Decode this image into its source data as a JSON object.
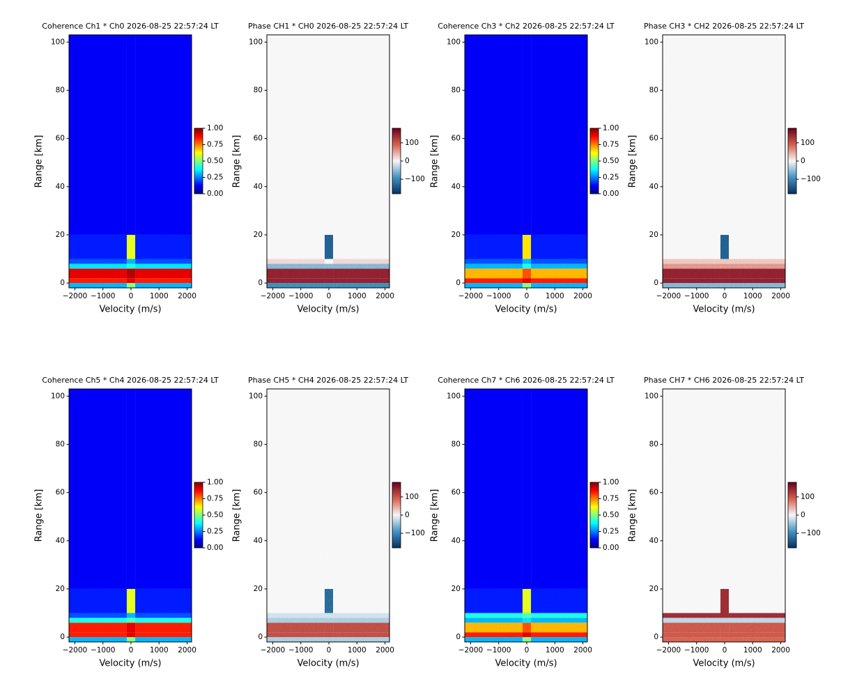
{
  "chart_data": [
    {
      "type": "heatmap",
      "title": "Coherence Ch1 * Ch0 2026-08-25 22:57:24 LT",
      "xlabel": "Velocity (m/s)",
      "ylabel": "Range [km]",
      "xlim": [
        -2210,
        2160
      ],
      "xticks": [
        {
          "value": -2000,
          "label": "−2000"
        },
        {
          "value": -1000,
          "label": "−1000"
        },
        0,
        1000,
        2000
      ],
      "ylim": [
        -2,
        103
      ],
      "yticks": [
        0,
        20,
        40,
        60,
        80,
        100
      ],
      "x_edges": [
        -2210,
        -150,
        150,
        2160
      ],
      "y_edges": [
        -2,
        0,
        2,
        6,
        8,
        10,
        20,
        103
      ],
      "z": [
        [
          0.3,
          0.5,
          0.3
        ],
        [
          0.85,
          0.9,
          0.85
        ],
        [
          0.9,
          0.95,
          0.9
        ],
        [
          0.35,
          0.4,
          0.35
        ],
        [
          0.2,
          0.3,
          0.2
        ],
        [
          0.15,
          0.6,
          0.15
        ],
        [
          0.12,
          0.12,
          0.12
        ]
      ],
      "colormap": "jet",
      "clim": [
        0,
        1
      ],
      "cticks": [
        {
          "value": 0,
          "label": "0.00"
        },
        0.25,
        {
          "value": 0.5,
          "label": "0.50"
        },
        0.75,
        {
          "value": 1,
          "label": "1.00"
        }
      ]
    },
    {
      "type": "heatmap",
      "title": "Phase CH1 * CH0 2026-08-25 22:57:24 LT",
      "xlabel": "Velocity (m/s)",
      "ylabel": "Range [km]",
      "xlim": [
        -2210,
        2160
      ],
      "xticks": [
        {
          "value": -2000,
          "label": "−2000"
        },
        {
          "value": -1000,
          "label": "−1000"
        },
        0,
        1000,
        2000
      ],
      "ylim": [
        -2,
        103
      ],
      "yticks": [
        0,
        20,
        40,
        60,
        80,
        100
      ],
      "x_edges": [
        -2210,
        -150,
        150,
        2160
      ],
      "y_edges": [
        -2,
        0,
        2,
        6,
        8,
        10,
        20,
        103
      ],
      "z": [
        [
          -100,
          -100,
          -100
        ],
        [
          150,
          150,
          150
        ],
        [
          150,
          150,
          150
        ],
        [
          -60,
          -60,
          -60
        ],
        [
          20,
          0,
          20
        ],
        [
          0,
          -140,
          0
        ],
        [
          0,
          0,
          0
        ]
      ],
      "colormap": "RdBu_r",
      "clim": [
        -180,
        180
      ],
      "cticks": [
        {
          "value": -100,
          "label": "−100"
        },
        0,
        100
      ]
    },
    {
      "type": "heatmap",
      "title": "Coherence Ch3 * Ch2 2026-08-25 22:57:24 LT",
      "xlabel": "Velocity (m/s)",
      "ylabel": "Range [km]",
      "xlim": [
        -2210,
        2160
      ],
      "xticks": [
        {
          "value": -2000,
          "label": "−2000"
        },
        {
          "value": -1000,
          "label": "−1000"
        },
        0,
        1000,
        2000
      ],
      "ylim": [
        -2,
        103
      ],
      "yticks": [
        0,
        20,
        40,
        60,
        80,
        100
      ],
      "x_edges": [
        -2210,
        -150,
        150,
        2160
      ],
      "y_edges": [
        -2,
        0,
        2,
        6,
        8,
        10,
        20,
        103
      ],
      "z": [
        [
          0.3,
          0.5,
          0.3
        ],
        [
          0.85,
          0.9,
          0.85
        ],
        [
          0.7,
          0.8,
          0.7
        ],
        [
          0.3,
          0.4,
          0.3
        ],
        [
          0.2,
          0.3,
          0.2
        ],
        [
          0.15,
          0.65,
          0.15
        ],
        [
          0.12,
          0.12,
          0.12
        ]
      ],
      "colormap": "jet",
      "clim": [
        0,
        1
      ],
      "cticks": [
        {
          "value": 0,
          "label": "0.00"
        },
        0.25,
        {
          "value": 0.5,
          "label": "0.50"
        },
        0.75,
        {
          "value": 1,
          "label": "1.00"
        }
      ]
    },
    {
      "type": "heatmap",
      "title": "Phase CH3 * CH2 2026-08-25 22:57:24 LT",
      "xlabel": "Velocity (m/s)",
      "ylabel": "Range [km]",
      "xlim": [
        -2210,
        2160
      ],
      "xticks": [
        {
          "value": -2000,
          "label": "−2000"
        },
        {
          "value": -1000,
          "label": "−1000"
        },
        0,
        1000,
        2000
      ],
      "ylim": [
        -2,
        103
      ],
      "yticks": [
        0,
        20,
        40,
        60,
        80,
        100
      ],
      "x_edges": [
        -2210,
        -150,
        150,
        2160
      ],
      "y_edges": [
        -2,
        0,
        2,
        6,
        8,
        10,
        20,
        103
      ],
      "z": [
        [
          -60,
          -60,
          -60
        ],
        [
          150,
          150,
          150
        ],
        [
          150,
          150,
          150
        ],
        [
          60,
          60,
          60
        ],
        [
          30,
          30,
          30
        ],
        [
          0,
          -140,
          0
        ],
        [
          0,
          0,
          0
        ]
      ],
      "colormap": "RdBu_r",
      "clim": [
        -180,
        180
      ],
      "cticks": [
        {
          "value": -100,
          "label": "−100"
        },
        0,
        100
      ]
    },
    {
      "type": "heatmap",
      "title": "Coherence Ch5 * Ch4 2026-08-25 22:57:24 LT",
      "xlabel": "Velocity (m/s)",
      "ylabel": "Range [km]",
      "xlim": [
        -2210,
        2160
      ],
      "xticks": [
        {
          "value": -2000,
          "label": "−2000"
        },
        {
          "value": -1000,
          "label": "−1000"
        },
        0,
        1000,
        2000
      ],
      "ylim": [
        -2,
        103
      ],
      "yticks": [
        0,
        20,
        40,
        60,
        80,
        100
      ],
      "x_edges": [
        -2210,
        -150,
        150,
        2160
      ],
      "y_edges": [
        -2,
        0,
        2,
        6,
        8,
        10,
        20,
        103
      ],
      "z": [
        [
          0.3,
          0.5,
          0.3
        ],
        [
          0.85,
          0.9,
          0.85
        ],
        [
          0.85,
          0.9,
          0.85
        ],
        [
          0.4,
          0.45,
          0.4
        ],
        [
          0.2,
          0.3,
          0.2
        ],
        [
          0.15,
          0.6,
          0.15
        ],
        [
          0.12,
          0.12,
          0.12
        ]
      ],
      "colormap": "jet",
      "clim": [
        0,
        1
      ],
      "cticks": [
        {
          "value": 0,
          "label": "0.00"
        },
        0.25,
        {
          "value": 0.5,
          "label": "0.50"
        },
        0.75,
        {
          "value": 1,
          "label": "1.00"
        }
      ]
    },
    {
      "type": "heatmap",
      "title": "Phase CH5 * CH4 2026-08-25 22:57:24 LT",
      "xlabel": "Velocity (m/s)",
      "ylabel": "Range [km]",
      "xlim": [
        -2210,
        2160
      ],
      "xticks": [
        {
          "value": -2000,
          "label": "−2000"
        },
        {
          "value": -1000,
          "label": "−1000"
        },
        0,
        1000,
        2000
      ],
      "ylim": [
        -2,
        103
      ],
      "yticks": [
        0,
        20,
        40,
        60,
        80,
        100
      ],
      "x_edges": [
        -2210,
        -150,
        150,
        2160
      ],
      "y_edges": [
        -2,
        0,
        2,
        6,
        8,
        10,
        20,
        103
      ],
      "z": [
        [
          -40,
          -40,
          -40
        ],
        [
          110,
          110,
          110
        ],
        [
          110,
          110,
          110
        ],
        [
          -40,
          -40,
          -40
        ],
        [
          -20,
          -20,
          -20
        ],
        [
          0,
          -130,
          0
        ],
        [
          0,
          0,
          0
        ]
      ],
      "colormap": "RdBu_r",
      "clim": [
        -180,
        180
      ],
      "cticks": [
        {
          "value": -100,
          "label": "−100"
        },
        0,
        100
      ]
    },
    {
      "type": "heatmap",
      "title": "Coherence Ch7 * Ch6 2026-08-25 22:57:24 LT",
      "xlabel": "Velocity (m/s)",
      "ylabel": "Range [km]",
      "xlim": [
        -2210,
        2160
      ],
      "xticks": [
        {
          "value": -2000,
          "label": "−2000"
        },
        {
          "value": -1000,
          "label": "−1000"
        },
        0,
        1000,
        2000
      ],
      "ylim": [
        -2,
        103
      ],
      "yticks": [
        0,
        20,
        40,
        60,
        80,
        100
      ],
      "x_edges": [
        -2210,
        -150,
        150,
        2160
      ],
      "y_edges": [
        -2,
        0,
        2,
        6,
        8,
        10,
        20,
        103
      ],
      "z": [
        [
          0.3,
          0.5,
          0.3
        ],
        [
          0.85,
          0.9,
          0.85
        ],
        [
          0.7,
          0.8,
          0.7
        ],
        [
          0.3,
          0.35,
          0.3
        ],
        [
          0.4,
          0.45,
          0.4
        ],
        [
          0.15,
          0.6,
          0.15
        ],
        [
          0.12,
          0.12,
          0.12
        ]
      ],
      "colormap": "jet",
      "clim": [
        0,
        1
      ],
      "cticks": [
        {
          "value": 0,
          "label": "0.00"
        },
        0.25,
        {
          "value": 0.5,
          "label": "0.50"
        },
        0.75,
        {
          "value": 1,
          "label": "1.00"
        }
      ]
    },
    {
      "type": "heatmap",
      "title": "Phase CH7 * CH6 2026-08-25 22:57:24 LT",
      "xlabel": "Velocity (m/s)",
      "ylabel": "Range [km]",
      "xlim": [
        -2210,
        2160
      ],
      "xticks": [
        {
          "value": -2000,
          "label": "−2000"
        },
        {
          "value": -1000,
          "label": "−1000"
        },
        0,
        1000,
        2000
      ],
      "ylim": [
        -2,
        103
      ],
      "yticks": [
        0,
        20,
        40,
        60,
        80,
        100
      ],
      "x_edges": [
        -2210,
        -150,
        150,
        2160
      ],
      "y_edges": [
        -2,
        0,
        2,
        6,
        8,
        10,
        20,
        103
      ],
      "z": [
        [
          90,
          90,
          90
        ],
        [
          100,
          100,
          100
        ],
        [
          100,
          100,
          100
        ],
        [
          -30,
          -30,
          -30
        ],
        [
          140,
          140,
          140
        ],
        [
          0,
          140,
          0
        ],
        [
          0,
          0,
          0
        ]
      ],
      "colormap": "RdBu_r",
      "clim": [
        -180,
        180
      ],
      "cticks": [
        {
          "value": -100,
          "label": "−100"
        },
        0,
        100
      ]
    }
  ]
}
